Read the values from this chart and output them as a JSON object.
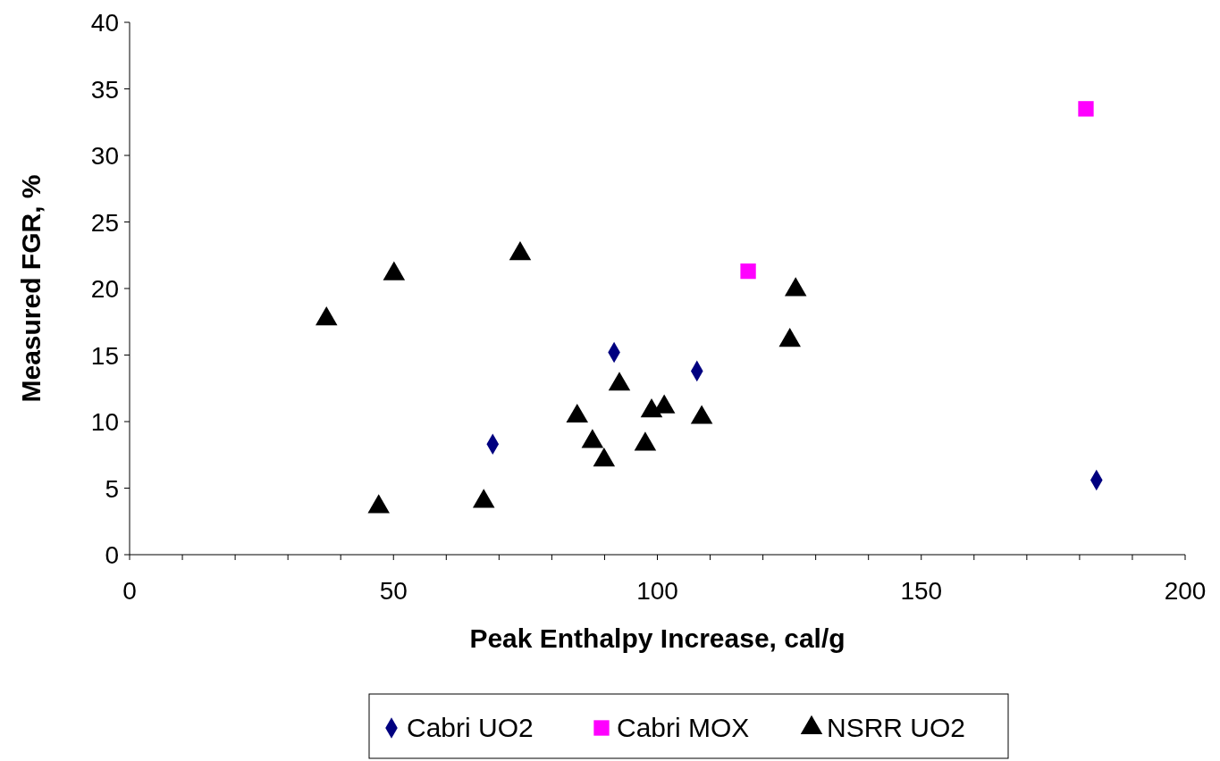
{
  "chart_data": {
    "type": "scatter",
    "xlabel": "Peak Enthalpy Increase, cal/g",
    "ylabel": "Measured FGR, %",
    "xlim": [
      0,
      200
    ],
    "xticks": [
      0,
      {
        "value": 10,
        "label": null
      },
      {
        "value": 20,
        "label": null
      },
      {
        "value": 30,
        "label": null
      },
      {
        "value": 40,
        "label": null
      },
      50,
      {
        "value": 60,
        "label": null
      },
      {
        "value": 70,
        "label": null
      },
      {
        "value": 80,
        "label": null
      },
      {
        "value": 90,
        "label": null
      },
      100,
      {
        "value": 110,
        "label": null
      },
      {
        "value": 120,
        "label": null
      },
      {
        "value": 130,
        "label": null
      },
      {
        "value": 140,
        "label": null
      },
      150,
      {
        "value": 160,
        "label": null
      },
      {
        "value": 170,
        "label": null
      },
      {
        "value": 180,
        "label": null
      },
      {
        "value": 190,
        "label": null
      },
      200
    ],
    "ylim": [
      0,
      40
    ],
    "yticks": [
      0,
      5,
      10,
      15,
      20,
      25,
      30,
      35,
      40
    ],
    "grid": false,
    "legend": "bottom",
    "series": [
      {
        "name": "Cabri UO2",
        "color": "#000080",
        "marker": "diamond",
        "x": [
          68.8,
          91.8,
          107.5,
          183.2
        ],
        "values": [
          8.3,
          15.2,
          13.8,
          5.6
        ]
      },
      {
        "name": "Cabri MOX",
        "color": "#ff00ff",
        "marker": "square",
        "x": [
          117.2,
          181.2
        ],
        "values": [
          21.3,
          33.5
        ]
      },
      {
        "name": "NSRR UO2",
        "color": "#000000",
        "marker": "triangle",
        "x": [
          37.3,
          50.1,
          74.0,
          47.2,
          67.1,
          84.8,
          87.7,
          89.9,
          92.8,
          97.7,
          98.9,
          101.3,
          108.4,
          125.1,
          126.2
        ],
        "values": [
          17.7,
          21.1,
          22.6,
          3.6,
          4.0,
          10.4,
          8.5,
          7.1,
          12.8,
          8.3,
          10.8,
          11.1,
          10.3,
          16.1,
          19.9
        ]
      }
    ]
  }
}
